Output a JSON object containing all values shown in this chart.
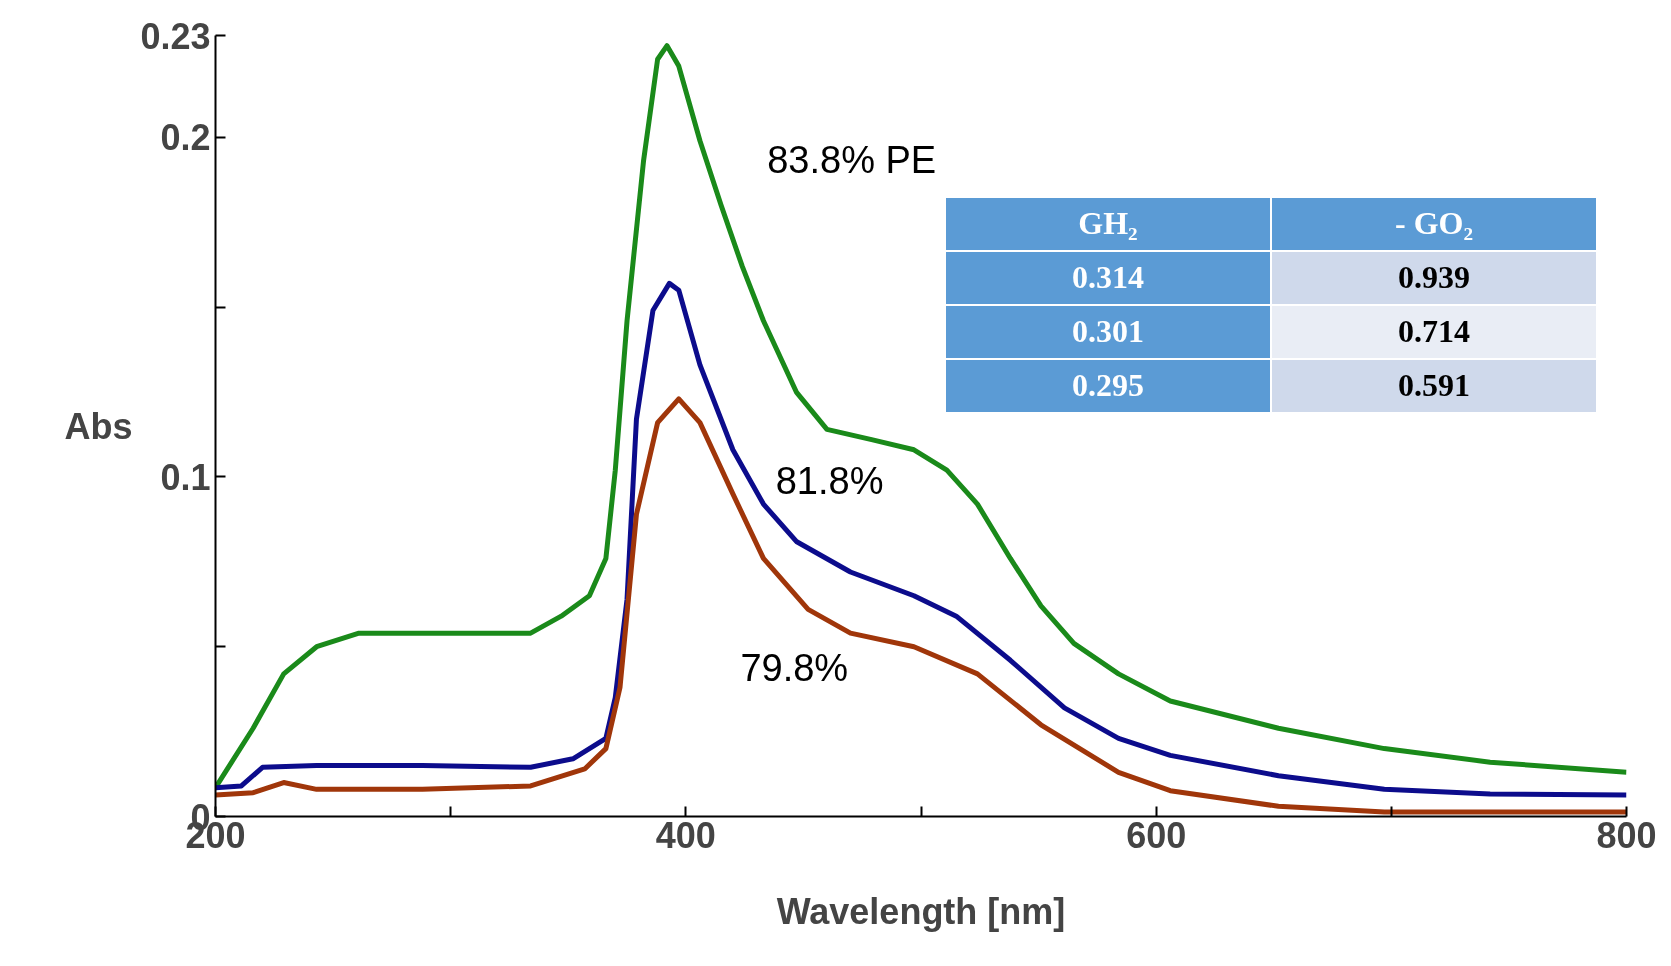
{
  "chart_data": {
    "type": "line",
    "xlabel": "Wavelength [nm]",
    "ylabel": "Abs",
    "xlim": [
      200,
      800
    ],
    "ylim": [
      0,
      0.23
    ],
    "xticks": [
      200,
      {
        "value": 300,
        "label": null
      },
      400,
      {
        "value": 500,
        "label": null
      },
      600,
      {
        "value": 700,
        "label": null
      },
      800
    ],
    "yticks": [
      0,
      {
        "value": 0.05,
        "label": null
      },
      0.1,
      {
        "value": 0.15,
        "label": null
      },
      0.2,
      0.23
    ],
    "grid": false,
    "marker": "none",
    "line_style": "solid",
    "series": [
      {
        "color": "#1a8a1a",
        "x": [
          200,
          216,
          229,
          243,
          261,
          288,
          311,
          334,
          347,
          359,
          366,
          370,
          375,
          382,
          388,
          392,
          397,
          406,
          415,
          424,
          433,
          447,
          460,
          479,
          497,
          511,
          524,
          538,
          551,
          565,
          584,
          606,
          652,
          697,
          742,
          800
        ],
        "values": [
          0.0085,
          0.026,
          0.042,
          0.05,
          0.054,
          0.054,
          0.054,
          0.054,
          0.059,
          0.065,
          0.076,
          0.102,
          0.146,
          0.193,
          0.223,
          0.227,
          0.221,
          0.199,
          0.18,
          0.162,
          0.146,
          0.125,
          0.114,
          0.111,
          0.108,
          0.102,
          0.092,
          0.076,
          0.062,
          0.051,
          0.042,
          0.034,
          0.026,
          0.02,
          0.016,
          0.013
        ]
      },
      {
        "color": "#0c0c8c",
        "x": [
          200,
          211,
          220,
          243,
          288,
          334,
          352,
          366,
          370,
          375,
          379,
          386,
          393,
          397,
          406,
          420,
          433,
          447,
          470,
          497,
          515,
          538,
          561,
          584,
          606,
          652,
          697,
          742,
          800
        ],
        "values": [
          0.0085,
          0.009,
          0.0145,
          0.015,
          0.015,
          0.0145,
          0.017,
          0.023,
          0.035,
          0.064,
          0.117,
          0.149,
          0.157,
          0.155,
          0.133,
          0.108,
          0.092,
          0.081,
          0.072,
          0.065,
          0.059,
          0.046,
          0.032,
          0.023,
          0.018,
          0.012,
          0.008,
          0.0066,
          0.0063
        ]
      },
      {
        "color": "#a0360a",
        "x": [
          200,
          216,
          229,
          243,
          288,
          334,
          357,
          366,
          372,
          379,
          388,
          397,
          406,
          420,
          433,
          452,
          470,
          497,
          524,
          551,
          584,
          606,
          652,
          697,
          800
        ],
        "values": [
          0.0063,
          0.007,
          0.01,
          0.008,
          0.008,
          0.009,
          0.014,
          0.02,
          0.038,
          0.089,
          0.116,
          0.123,
          0.116,
          0.095,
          0.076,
          0.061,
          0.054,
          0.05,
          0.042,
          0.027,
          0.013,
          0.0076,
          0.003,
          0.0013,
          0.0013
        ]
      }
    ],
    "annotations": [
      "83.8% PE",
      "81.8%",
      "79.8%",
      "GH₂",
      "- GO₂",
      "0.314",
      "0.939",
      "0.301",
      "0.714",
      "0.295",
      "0.591"
    ]
  }
}
